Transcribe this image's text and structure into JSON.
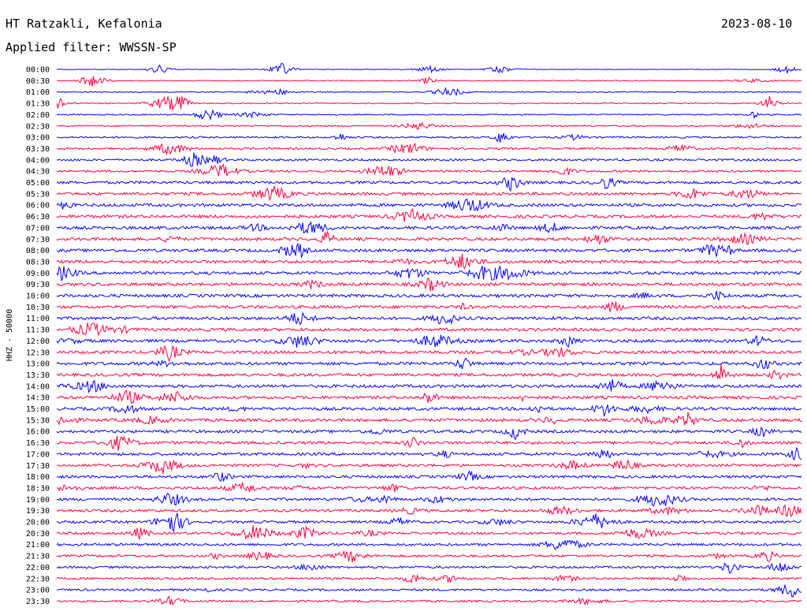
{
  "header": {
    "station": "HT Ratzakli, Kefalonia",
    "date": "2023-08-10",
    "filter": "Applied filter: WWSSN-SP",
    "channel": "HHZ - 50000"
  },
  "colors": {
    "odd": "#0000ff",
    "even": "#ff0040"
  },
  "chart_data": {
    "type": "line",
    "title": "HT Ratzakli, Kefalonia",
    "ylabel": "HHZ - 50000",
    "legend": "none",
    "grid": false,
    "categories": [
      "00:00",
      "00:30",
      "01:00",
      "01:30",
      "02:00",
      "02:30",
      "03:00",
      "03:30",
      "04:00",
      "04:30",
      "05:00",
      "05:30",
      "06:00",
      "06:30",
      "07:00",
      "07:30",
      "08:00",
      "08:30",
      "09:00",
      "09:30",
      "10:00",
      "10:30",
      "11:00",
      "11:30",
      "12:00",
      "12:30",
      "13:00",
      "13:30",
      "14:00",
      "14:30",
      "15:00",
      "15:30",
      "16:00",
      "16:30",
      "17:00",
      "17:30",
      "18:00",
      "18:30",
      "19:00",
      "19:30",
      "20:00",
      "20:30",
      "21:00",
      "21:30",
      "22:00",
      "22:30",
      "23:00",
      "23:30"
    ],
    "noise_levels": [
      0.15,
      0.25,
      0.3,
      0.3,
      0.35,
      0.4,
      0.5,
      0.55,
      0.6,
      0.6,
      0.75,
      0.8,
      0.85,
      0.85,
      0.85,
      0.85,
      0.85,
      0.85,
      0.85,
      0.85,
      0.85,
      0.85,
      0.85,
      0.85,
      0.85,
      0.85,
      0.85,
      0.85,
      0.85,
      0.85,
      0.85,
      0.85,
      0.8,
      0.8,
      0.8,
      0.75,
      0.75,
      0.75,
      0.75,
      0.75,
      0.7,
      0.7,
      0.7,
      0.65,
      0.65,
      0.6,
      0.6,
      0.55
    ]
  }
}
